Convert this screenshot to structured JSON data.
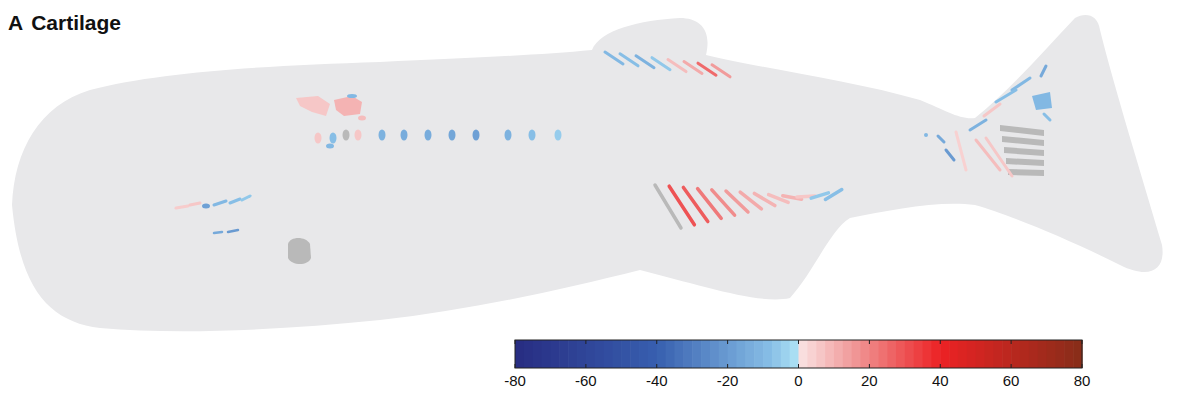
{
  "chart_data": {
    "type": "heatmap",
    "panel": "A",
    "title": "Cartilage",
    "values": [
      6,
      -8,
      null,
      6,
      -12,
      -14,
      -14,
      -16,
      -18,
      -12,
      -8,
      -5,
      -10,
      6,
      10,
      -10,
      8,
      -10,
      -8,
      -12,
      -6,
      8,
      12,
      25,
      15,
      null,
      30,
      28,
      22,
      18,
      15,
      12,
      10,
      8,
      10,
      6,
      -6,
      -8,
      5,
      6,
      -18,
      -10,
      -8,
      -6,
      -15,
      -20,
      null,
      -15,
      -10,
      -8,
      6,
      -10,
      -12,
      null,
      null,
      null,
      null,
      null,
      8,
      6,
      4,
      -20,
      -10,
      -15,
      -8
    ],
    "colorbar": {
      "range": [
        -80,
        80
      ],
      "ticks": [
        -80,
        -60,
        -40,
        -20,
        0,
        20,
        40,
        60,
        80
      ]
    }
  }
}
